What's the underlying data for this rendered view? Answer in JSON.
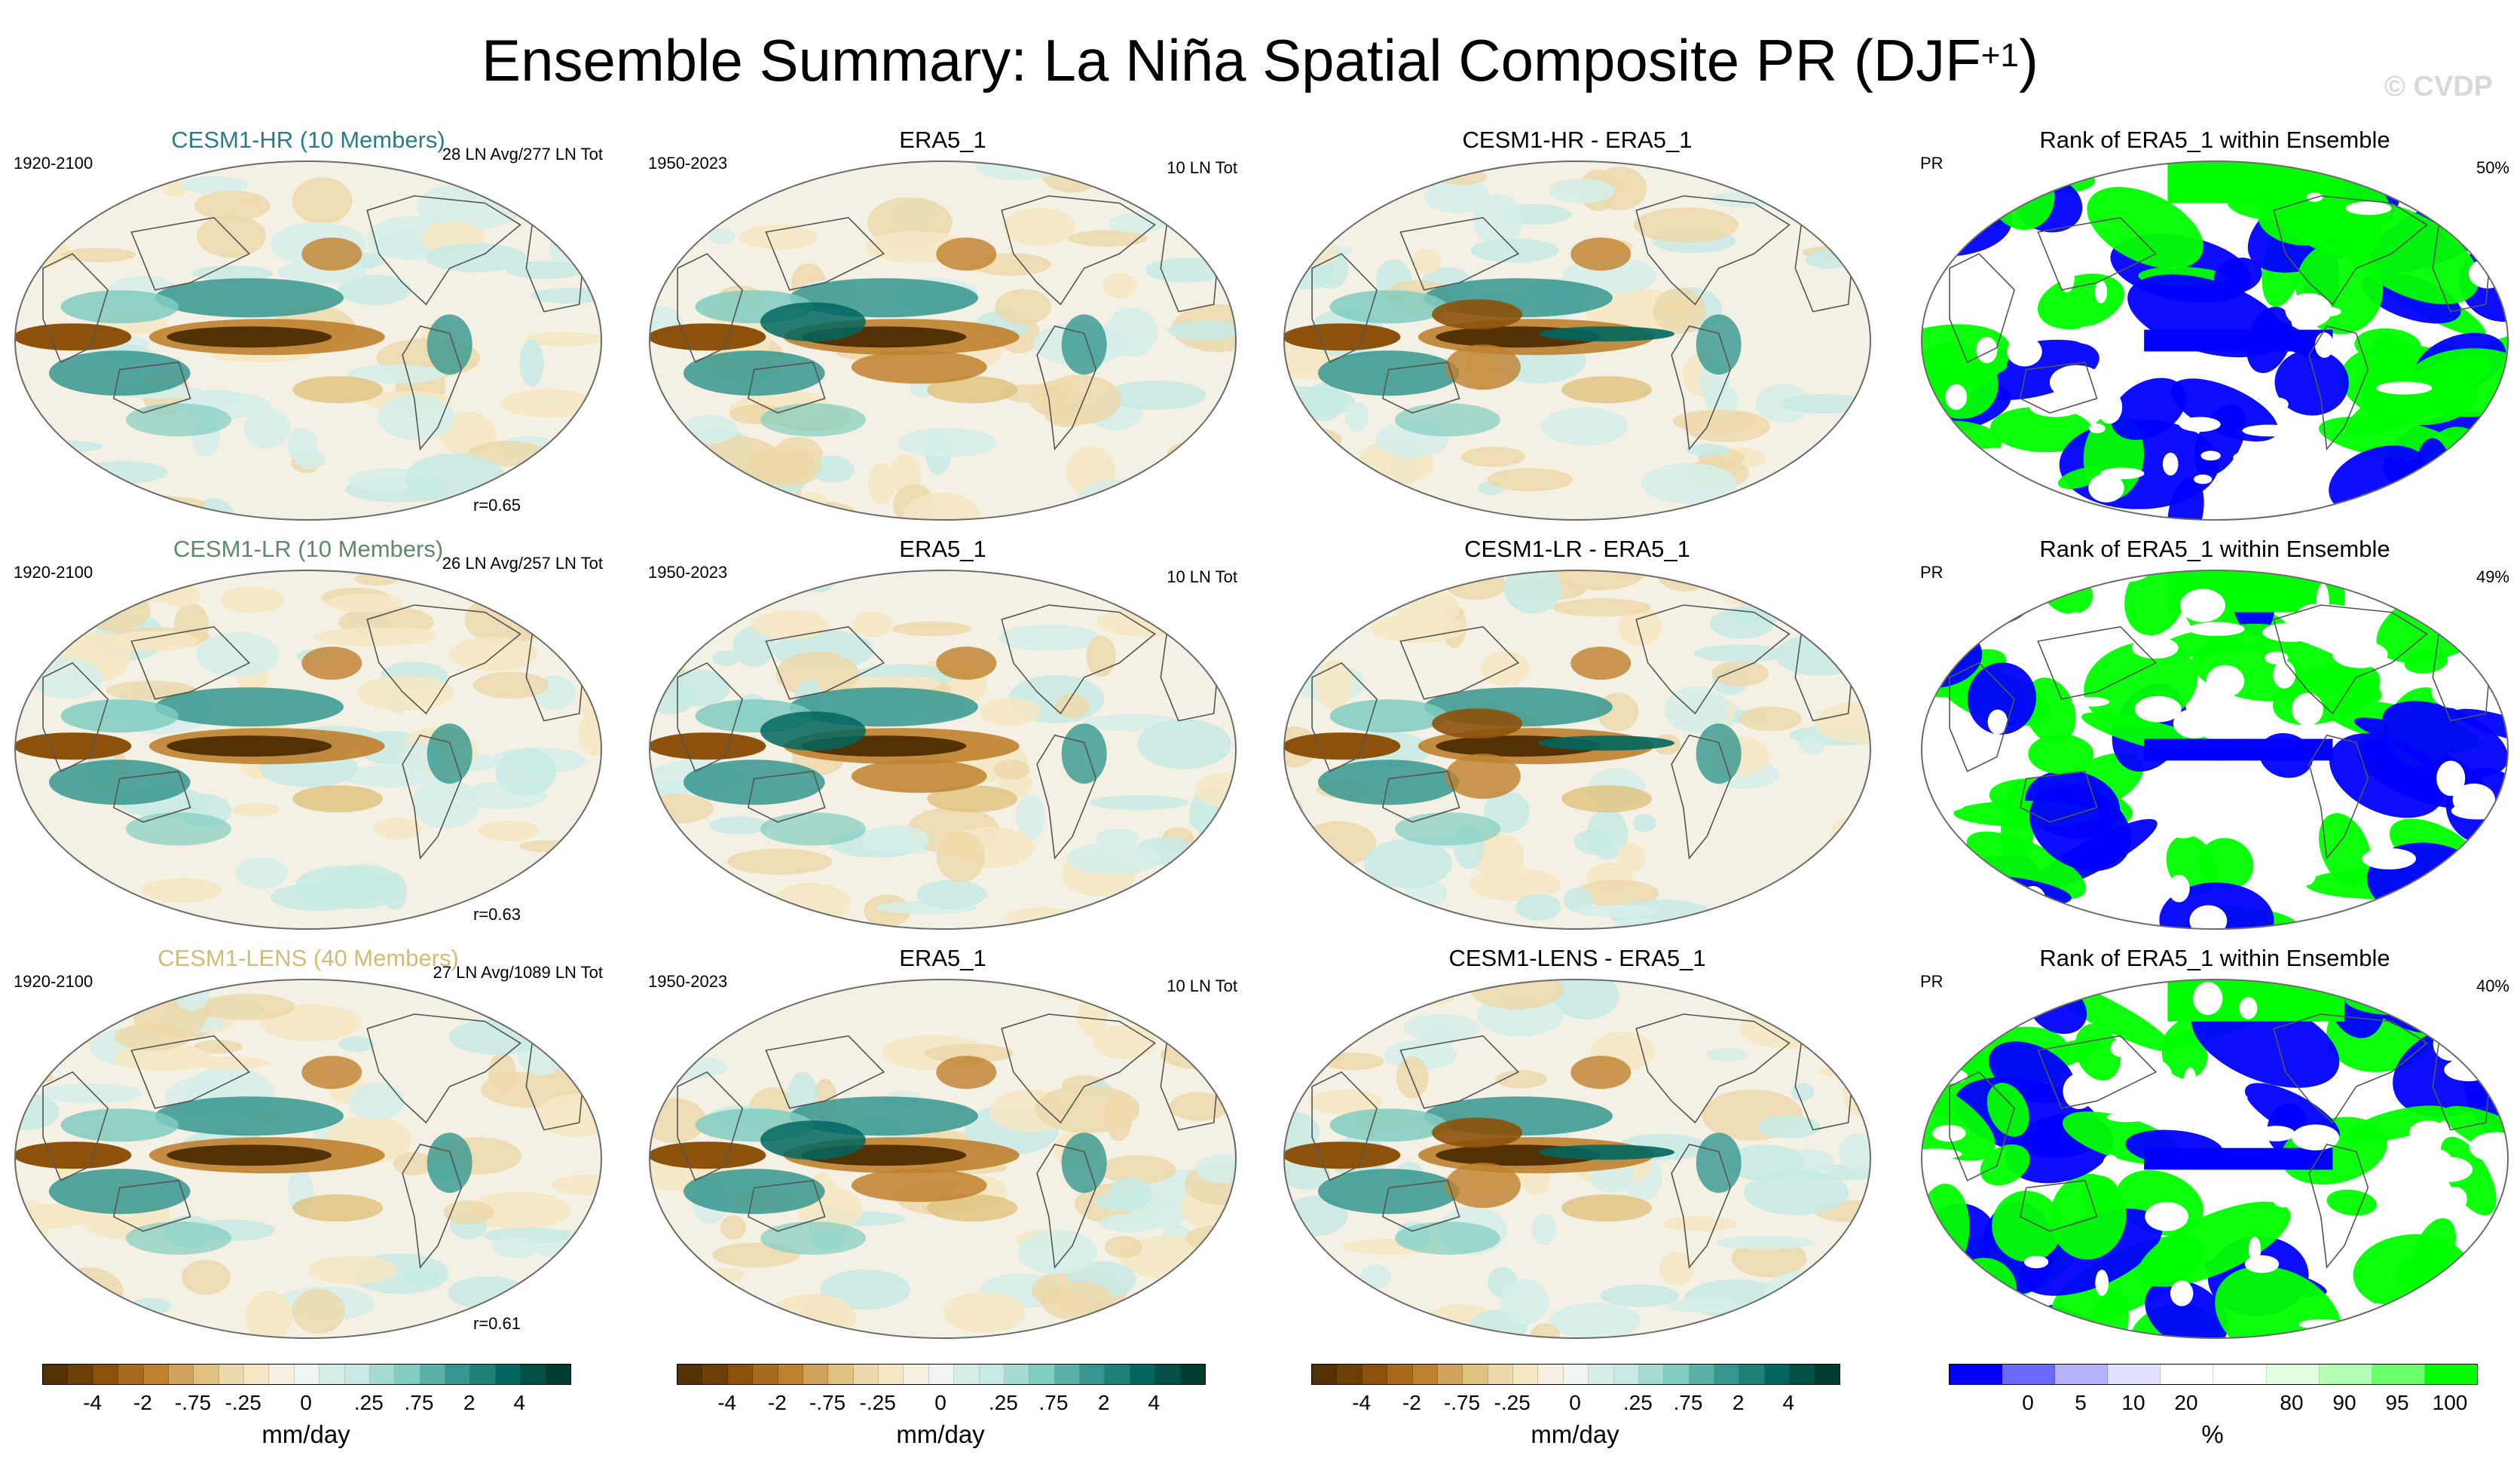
{
  "title": {
    "main": "Ensemble Summary: La Niña Spatial Composite PR (DJF",
    "superscript": "+1",
    "close": ")"
  },
  "watermark": "© CVDP",
  "rows": [
    {
      "ens": {
        "title": "CESM1-HR (10 Members)",
        "title_color": "#2a7b8c",
        "period": "1920-2100",
        "count": "28 LN Avg/277 LN Tot",
        "r": "r=0.65"
      },
      "obs": {
        "title": "ERA5_1",
        "period": "1950-2023",
        "count": "10 LN Tot"
      },
      "diff": {
        "title": "CESM1-HR - ERA5_1"
      },
      "rank": {
        "title": "Rank of ERA5_1 within Ensemble",
        "var": "PR",
        "pct": "50%"
      }
    },
    {
      "ens": {
        "title": "CESM1-LR (10 Members)",
        "title_color": "#5e8a67",
        "period": "1920-2100",
        "count": "26 LN Avg/257 LN Tot",
        "r": "r=0.63"
      },
      "obs": {
        "title": "ERA5_1",
        "period": "1950-2023",
        "count": "10 LN Tot"
      },
      "diff": {
        "title": "CESM1-LR - ERA5_1"
      },
      "rank": {
        "title": "Rank of ERA5_1 within Ensemble",
        "var": "PR",
        "pct": "49%"
      }
    },
    {
      "ens": {
        "title": "CESM1-LENS (40 Members)",
        "title_color": "#d2bb72",
        "period": "1920-2100",
        "count": "27 LN Avg/1089 LN Tot",
        "r": "r=0.61"
      },
      "obs": {
        "title": "ERA5_1",
        "period": "1950-2023",
        "count": "10 LN Tot"
      },
      "diff": {
        "title": "CESM1-LENS - ERA5_1"
      },
      "rank": {
        "title": "Rank of ERA5_1 within Ensemble",
        "var": "PR",
        "pct": "40%"
      }
    }
  ],
  "colorbars": {
    "pr": {
      "unit": "mm/day",
      "colors": [
        "#543005",
        "#6d3f08",
        "#8c510a",
        "#a8691c",
        "#bf812d",
        "#d2a35c",
        "#dfc27d",
        "#ecd9ac",
        "#f6e8c3",
        "#f5f0e2",
        "#eef5f2",
        "#d5eeea",
        "#c7eae5",
        "#a6dbd2",
        "#80cdc1",
        "#5ab2a7",
        "#35978f",
        "#1f8077",
        "#01665e",
        "#024f46",
        "#003c30"
      ],
      "tick_labels": [
        "-4",
        "-2",
        "-.75",
        "-.25",
        "0",
        ".25",
        ".75",
        "2",
        "4"
      ]
    },
    "rank": {
      "unit": "%",
      "colors": [
        "#0000ff",
        "#6a6aff",
        "#b3b3ff",
        "#e0e0ff",
        "#ffffff",
        "#ffffff",
        "#e0ffe0",
        "#b3ffb3",
        "#6aff6a",
        "#00ff00"
      ],
      "tick_labels": [
        "0",
        "5",
        "10",
        "20",
        "80",
        "90",
        "95",
        "100"
      ]
    }
  }
}
